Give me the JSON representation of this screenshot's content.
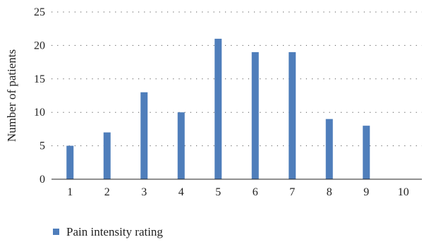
{
  "chart_data": {
    "type": "bar",
    "categories": [
      "1",
      "2",
      "3",
      "4",
      "5",
      "6",
      "7",
      "8",
      "9",
      "10"
    ],
    "series": [
      {
        "name": "Pain intensity rating",
        "values": [
          5,
          7,
          13,
          10,
          21,
          19,
          19,
          9,
          8,
          0
        ],
        "color": "#4F7EBB"
      }
    ],
    "title": "",
    "xlabel": "",
    "ylabel": "Number of patients",
    "ylim": [
      0,
      25
    ],
    "yticks": [
      "0",
      "5",
      "10",
      "15",
      "20",
      "25"
    ],
    "grid": "horizontal dotted",
    "legend_position": "bottom-left"
  }
}
